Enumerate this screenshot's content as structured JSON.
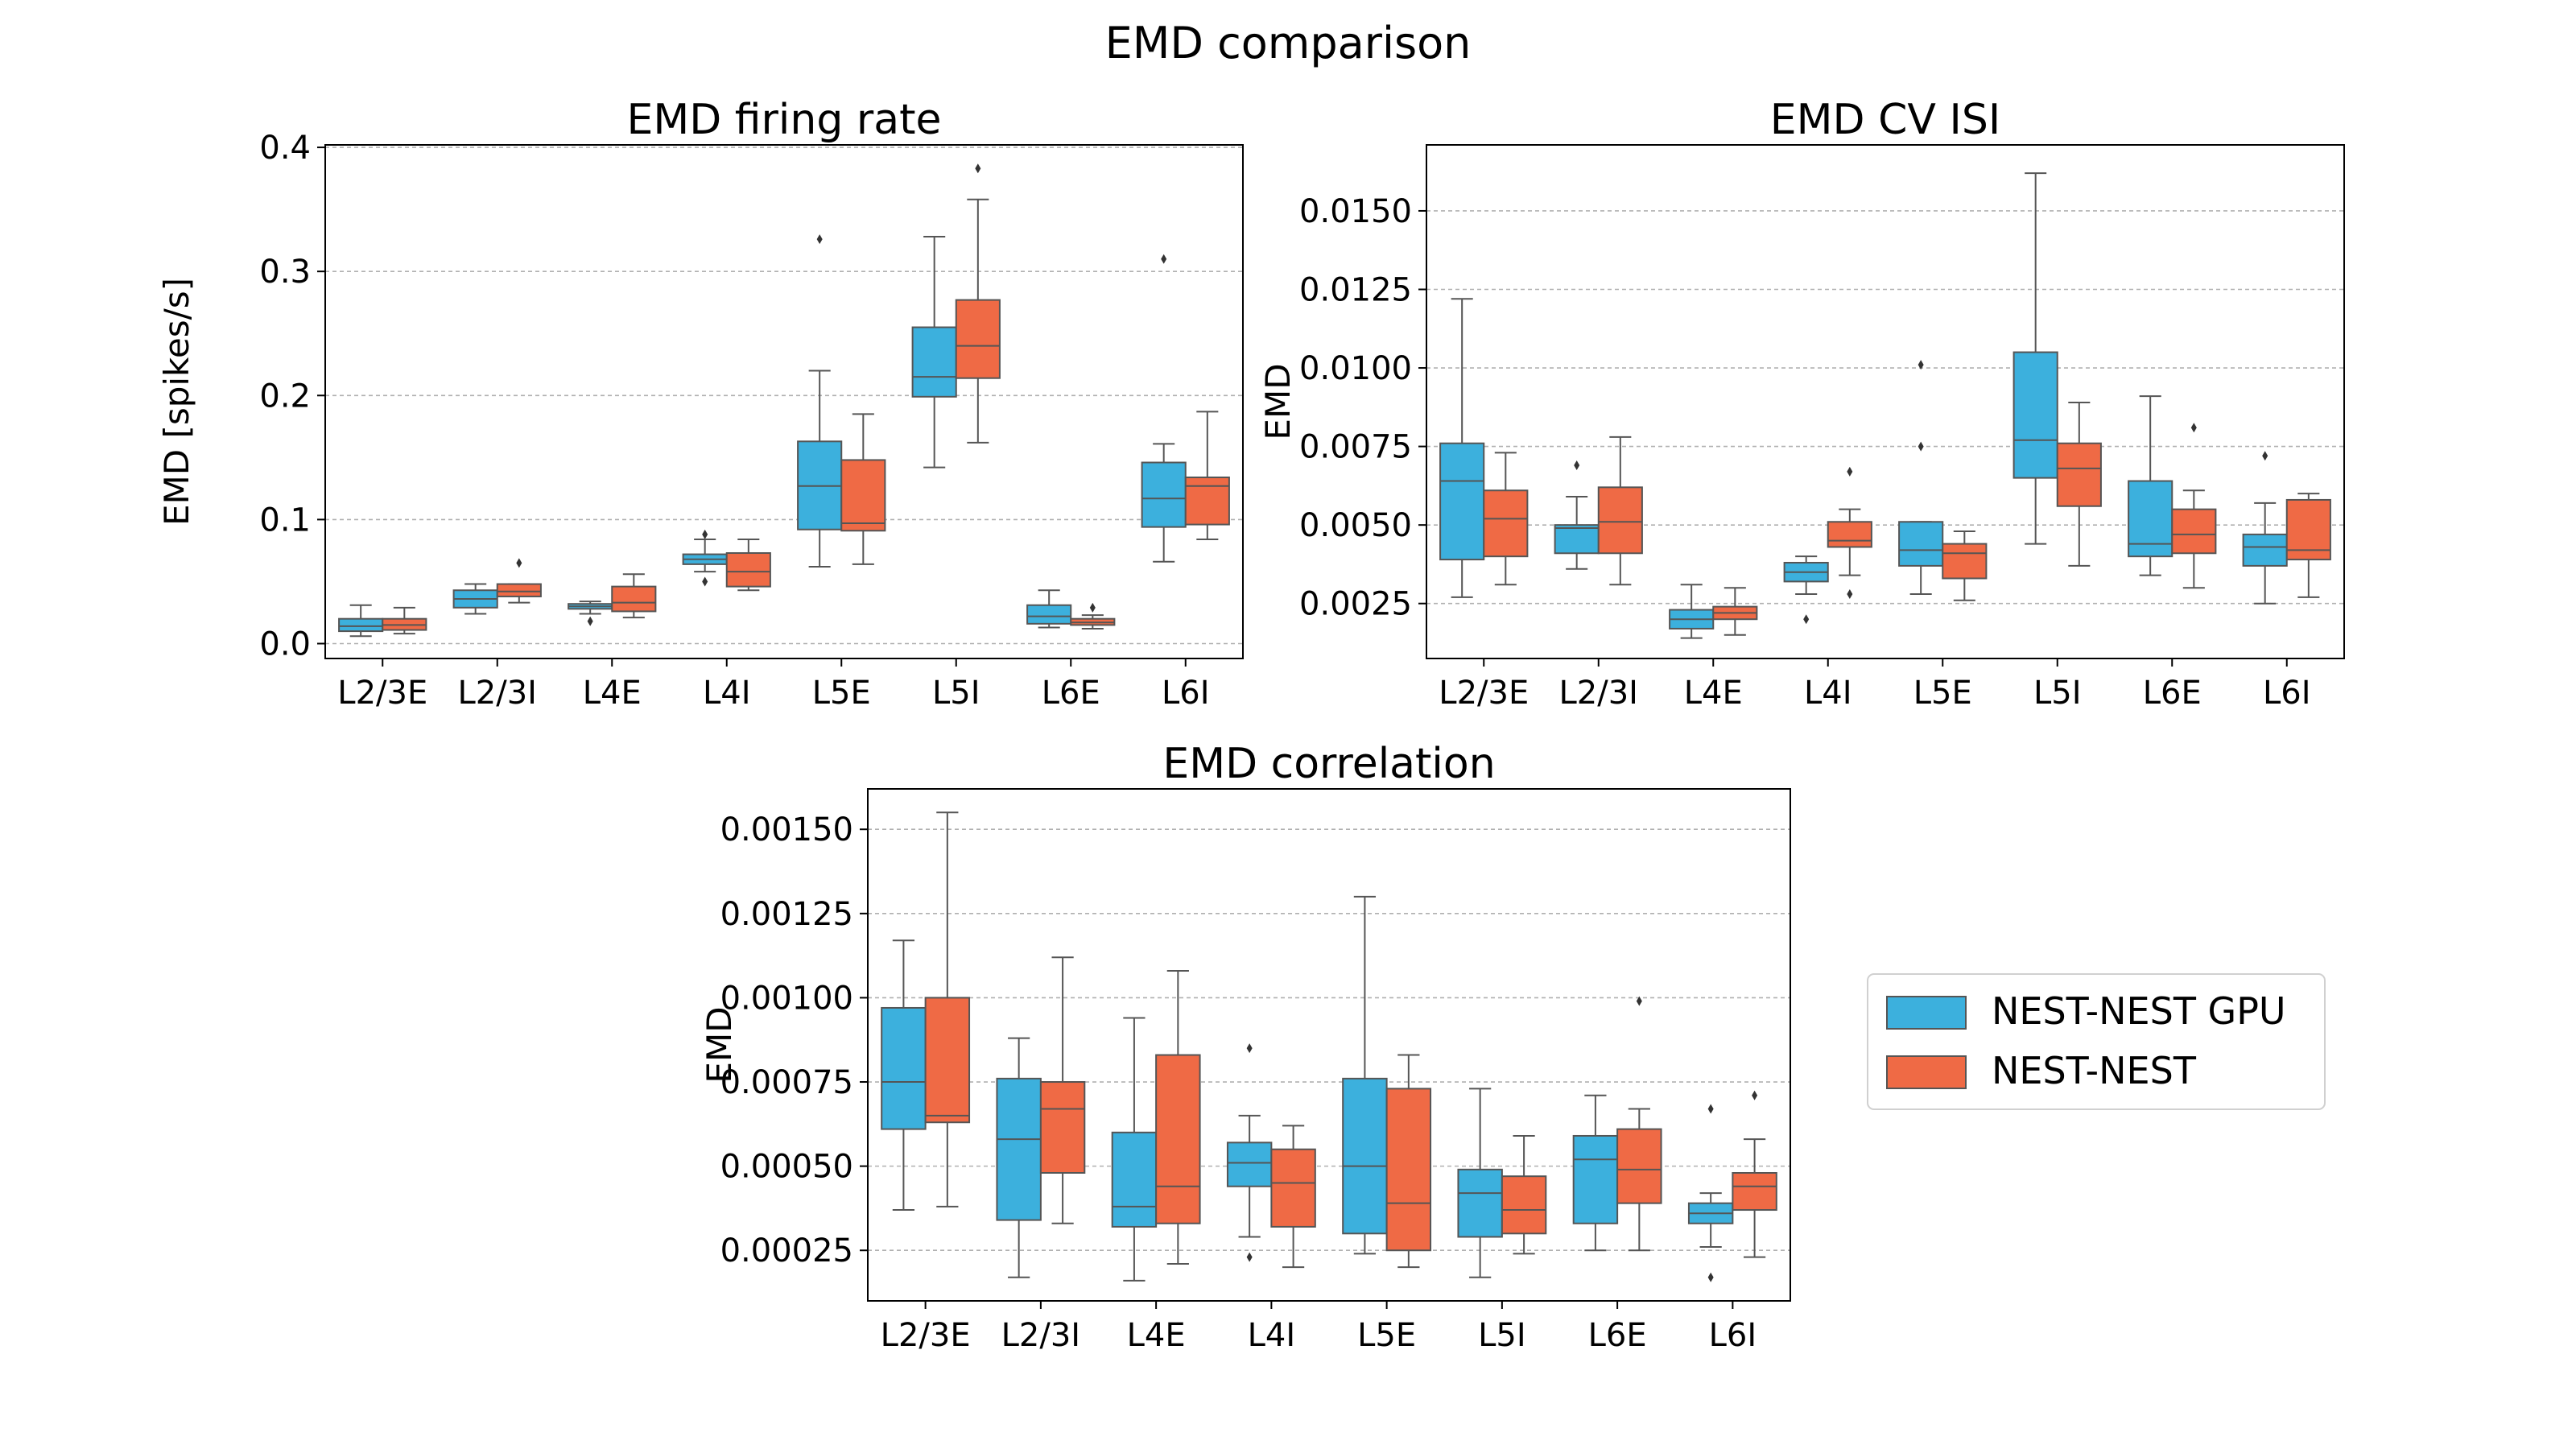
{
  "figure": {
    "title": "EMD comparison"
  },
  "legend": {
    "placement": "right of bottom panel",
    "entries": [
      {
        "label": "NEST-NEST GPU",
        "color": "#3cb0dd"
      },
      {
        "label": "NEST-NEST",
        "color": "#ef6a45"
      }
    ]
  },
  "colors": {
    "gpu": "#3cb0dd",
    "nest": "#ef6a45",
    "line": "#555555",
    "grid": "#b0b0b0"
  },
  "chart_data": [
    {
      "type": "box",
      "title": "EMD firing rate",
      "xlabel": "",
      "ylabel": "EMD [spikes/s]",
      "categories": [
        "L2/3E",
        "L2/3I",
        "L4E",
        "L4I",
        "L5E",
        "L5I",
        "L6E",
        "L6I"
      ],
      "ylim": [
        -0.012,
        0.402
      ],
      "yticks": [
        0.0,
        0.1,
        0.2,
        0.3,
        0.4
      ],
      "ytick_labels": [
        "0.0",
        "0.1",
        "0.2",
        "0.3",
        "0.4"
      ],
      "grid": "horizontal",
      "series": [
        {
          "name": "NEST-NEST GPU",
          "boxes": [
            {
              "whislo": 0.006,
              "q1": 0.01,
              "med": 0.014,
              "q3": 0.02,
              "whishi": 0.031,
              "fliers": []
            },
            {
              "whislo": 0.024,
              "q1": 0.029,
              "med": 0.036,
              "q3": 0.043,
              "whishi": 0.048,
              "fliers": []
            },
            {
              "whislo": 0.024,
              "q1": 0.028,
              "med": 0.03,
              "q3": 0.032,
              "whishi": 0.034,
              "fliers": [
                0.018
              ]
            },
            {
              "whislo": 0.058,
              "q1": 0.064,
              "med": 0.068,
              "q3": 0.072,
              "whishi": 0.084,
              "fliers": [
                0.05,
                0.088
              ]
            },
            {
              "whislo": 0.062,
              "q1": 0.092,
              "med": 0.127,
              "q3": 0.163,
              "whishi": 0.22,
              "fliers": [
                0.326
              ]
            },
            {
              "whislo": 0.142,
              "q1": 0.199,
              "med": 0.215,
              "q3": 0.255,
              "whishi": 0.328,
              "fliers": []
            },
            {
              "whislo": 0.013,
              "q1": 0.016,
              "med": 0.022,
              "q3": 0.031,
              "whishi": 0.043,
              "fliers": []
            },
            {
              "whislo": 0.066,
              "q1": 0.094,
              "med": 0.117,
              "q3": 0.146,
              "whishi": 0.161,
              "fliers": [
                0.31
              ]
            }
          ]
        },
        {
          "name": "NEST-NEST",
          "boxes": [
            {
              "whislo": 0.008,
              "q1": 0.011,
              "med": 0.015,
              "q3": 0.02,
              "whishi": 0.029,
              "fliers": []
            },
            {
              "whislo": 0.033,
              "q1": 0.038,
              "med": 0.042,
              "q3": 0.048,
              "whishi": 0.048,
              "fliers": [
                0.065
              ]
            },
            {
              "whislo": 0.021,
              "q1": 0.026,
              "med": 0.033,
              "q3": 0.046,
              "whishi": 0.056,
              "fliers": []
            },
            {
              "whislo": 0.043,
              "q1": 0.046,
              "med": 0.058,
              "q3": 0.073,
              "whishi": 0.084,
              "fliers": []
            },
            {
              "whislo": 0.064,
              "q1": 0.091,
              "med": 0.097,
              "q3": 0.148,
              "whishi": 0.185,
              "fliers": []
            },
            {
              "whislo": 0.162,
              "q1": 0.214,
              "med": 0.24,
              "q3": 0.277,
              "whishi": 0.358,
              "fliers": [
                0.383
              ]
            },
            {
              "whislo": 0.012,
              "q1": 0.015,
              "med": 0.017,
              "q3": 0.02,
              "whishi": 0.023,
              "fliers": [
                0.029
              ]
            },
            {
              "whislo": 0.084,
              "q1": 0.096,
              "med": 0.127,
              "q3": 0.134,
              "whishi": 0.187,
              "fliers": []
            }
          ]
        }
      ]
    },
    {
      "type": "box",
      "title": "EMD CV ISI",
      "xlabel": "",
      "ylabel": "EMD",
      "categories": [
        "L2/3E",
        "L2/3I",
        "L4E",
        "L4I",
        "L5E",
        "L5I",
        "L6E",
        "L6I"
      ],
      "ylim": [
        0.00075,
        0.0171
      ],
      "yticks": [
        0.0025,
        0.005,
        0.0075,
        0.01,
        0.0125,
        0.015
      ],
      "ytick_labels": [
        "0.0025",
        "0.0050",
        "0.0075",
        "0.0100",
        "0.0125",
        "0.0150"
      ],
      "grid": "horizontal",
      "series": [
        {
          "name": "NEST-NEST GPU",
          "boxes": [
            {
              "whislo": 0.0027,
              "q1": 0.0039,
              "med": 0.0064,
              "q3": 0.0076,
              "whishi": 0.0122,
              "fliers": []
            },
            {
              "whislo": 0.0036,
              "q1": 0.0041,
              "med": 0.0049,
              "q3": 0.005,
              "whishi": 0.0059,
              "fliers": [
                0.0069
              ]
            },
            {
              "whislo": 0.0014,
              "q1": 0.0017,
              "med": 0.002,
              "q3": 0.0023,
              "whishi": 0.0031,
              "fliers": []
            },
            {
              "whislo": 0.0028,
              "q1": 0.0032,
              "med": 0.0035,
              "q3": 0.0038,
              "whishi": 0.004,
              "fliers": [
                0.002
              ]
            },
            {
              "whislo": 0.0028,
              "q1": 0.0037,
              "med": 0.0042,
              "q3": 0.0051,
              "whishi": 0.0051,
              "fliers": [
                0.0075,
                0.0101
              ]
            },
            {
              "whislo": 0.0044,
              "q1": 0.0065,
              "med": 0.0077,
              "q3": 0.0105,
              "whishi": 0.0162,
              "fliers": []
            },
            {
              "whislo": 0.0034,
              "q1": 0.004,
              "med": 0.0044,
              "q3": 0.0064,
              "whishi": 0.0091,
              "fliers": []
            },
            {
              "whislo": 0.0025,
              "q1": 0.0037,
              "med": 0.0043,
              "q3": 0.0047,
              "whishi": 0.0057,
              "fliers": [
                0.0072
              ]
            }
          ]
        },
        {
          "name": "NEST-NEST",
          "boxes": [
            {
              "whislo": 0.0031,
              "q1": 0.004,
              "med": 0.0052,
              "q3": 0.0061,
              "whishi": 0.0073,
              "fliers": []
            },
            {
              "whislo": 0.0031,
              "q1": 0.0041,
              "med": 0.0051,
              "q3": 0.0062,
              "whishi": 0.0078,
              "fliers": []
            },
            {
              "whislo": 0.0015,
              "q1": 0.002,
              "med": 0.0022,
              "q3": 0.0024,
              "whishi": 0.003,
              "fliers": []
            },
            {
              "whislo": 0.0034,
              "q1": 0.0043,
              "med": 0.0045,
              "q3": 0.0051,
              "whishi": 0.0055,
              "fliers": [
                0.0028,
                0.0067
              ]
            },
            {
              "whislo": 0.0026,
              "q1": 0.0033,
              "med": 0.0041,
              "q3": 0.0044,
              "whishi": 0.0048,
              "fliers": []
            },
            {
              "whislo": 0.0037,
              "q1": 0.0056,
              "med": 0.0068,
              "q3": 0.0076,
              "whishi": 0.0089,
              "fliers": []
            },
            {
              "whislo": 0.003,
              "q1": 0.0041,
              "med": 0.0047,
              "q3": 0.0055,
              "whishi": 0.0061,
              "fliers": [
                0.0081
              ]
            },
            {
              "whislo": 0.0027,
              "q1": 0.0039,
              "med": 0.0042,
              "q3": 0.0058,
              "whishi": 0.006,
              "fliers": []
            }
          ]
        }
      ]
    },
    {
      "type": "box",
      "title": "EMD correlation",
      "xlabel": "",
      "ylabel": "EMD",
      "categories": [
        "L2/3E",
        "L2/3I",
        "L4E",
        "L4I",
        "L5E",
        "L5I",
        "L6E",
        "L6I"
      ],
      "ylim": [
        0.0001,
        0.00162
      ],
      "yticks": [
        0.00025,
        0.0005,
        0.00075,
        0.001,
        0.00125,
        0.0015
      ],
      "ytick_labels": [
        "0.00025",
        "0.00050",
        "0.00075",
        "0.00100",
        "0.00125",
        "0.00150"
      ],
      "grid": "horizontal",
      "series": [
        {
          "name": "NEST-NEST GPU",
          "boxes": [
            {
              "whislo": 0.00037,
              "q1": 0.00061,
              "med": 0.00075,
              "q3": 0.00097,
              "whishi": 0.00117,
              "fliers": []
            },
            {
              "whislo": 0.00017,
              "q1": 0.00034,
              "med": 0.00058,
              "q3": 0.00076,
              "whishi": 0.00088,
              "fliers": []
            },
            {
              "whislo": 0.00016,
              "q1": 0.00032,
              "med": 0.00038,
              "q3": 0.0006,
              "whishi": 0.00094,
              "fliers": []
            },
            {
              "whislo": 0.00029,
              "q1": 0.00044,
              "med": 0.00051,
              "q3": 0.00057,
              "whishi": 0.00065,
              "fliers": [
                0.00023,
                0.00085
              ]
            },
            {
              "whislo": 0.00024,
              "q1": 0.0003,
              "med": 0.0005,
              "q3": 0.00076,
              "whishi": 0.0013,
              "fliers": []
            },
            {
              "whislo": 0.00017,
              "q1": 0.00029,
              "med": 0.00042,
              "q3": 0.00049,
              "whishi": 0.00073,
              "fliers": []
            },
            {
              "whislo": 0.00025,
              "q1": 0.00033,
              "med": 0.00052,
              "q3": 0.00059,
              "whishi": 0.00071,
              "fliers": []
            },
            {
              "whislo": 0.00026,
              "q1": 0.00033,
              "med": 0.00036,
              "q3": 0.00039,
              "whishi": 0.00042,
              "fliers": [
                0.00017,
                0.00067
              ]
            }
          ]
        },
        {
          "name": "NEST-NEST",
          "boxes": [
            {
              "whislo": 0.00038,
              "q1": 0.00063,
              "med": 0.00065,
              "q3": 0.001,
              "whishi": 0.00155,
              "fliers": []
            },
            {
              "whislo": 0.00033,
              "q1": 0.00048,
              "med": 0.00067,
              "q3": 0.00075,
              "whishi": 0.00112,
              "fliers": []
            },
            {
              "whislo": 0.00021,
              "q1": 0.00033,
              "med": 0.00044,
              "q3": 0.00083,
              "whishi": 0.00108,
              "fliers": []
            },
            {
              "whislo": 0.0002,
              "q1": 0.00032,
              "med": 0.00045,
              "q3": 0.00055,
              "whishi": 0.00062,
              "fliers": []
            },
            {
              "whislo": 0.0002,
              "q1": 0.00025,
              "med": 0.00039,
              "q3": 0.00073,
              "whishi": 0.00083,
              "fliers": []
            },
            {
              "whislo": 0.00024,
              "q1": 0.0003,
              "med": 0.00037,
              "q3": 0.00047,
              "whishi": 0.00059,
              "fliers": []
            },
            {
              "whislo": 0.00025,
              "q1": 0.00039,
              "med": 0.00049,
              "q3": 0.00061,
              "whishi": 0.00067,
              "fliers": [
                0.00099
              ]
            },
            {
              "whislo": 0.00023,
              "q1": 0.00037,
              "med": 0.00044,
              "q3": 0.00048,
              "whishi": 0.00058,
              "fliers": [
                0.00071
              ]
            }
          ]
        }
      ]
    }
  ]
}
